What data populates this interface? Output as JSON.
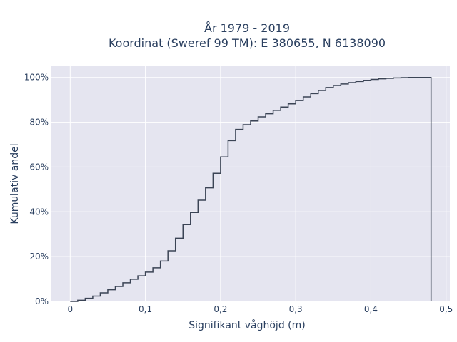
{
  "chart_data": {
    "type": "line",
    "line_shape": "step",
    "title_line1": "År 1979 - 2019",
    "title_line2": "Koordinat (Sweref 99 TM): E 380655, N 6138090",
    "xlabel": "Signifikant våghöjd (m)",
    "ylabel": "Kumulativ andel",
    "xlim": [
      -0.025,
      0.505
    ],
    "ylim": [
      0,
      1.05
    ],
    "x_ticks": [
      0,
      0.1,
      0.2,
      0.3,
      0.4,
      0.5
    ],
    "x_tick_labels": [
      "0",
      "0,1",
      "0,2",
      "0,3",
      "0,4",
      "0,5"
    ],
    "y_ticks": [
      0,
      0.2,
      0.4,
      0.6,
      0.8,
      1.0
    ],
    "y_tick_labels": [
      "0%",
      "20%",
      "40%",
      "60%",
      "80%",
      "100%"
    ],
    "grid": true,
    "colors": {
      "plot_bg": "#e5e5f0",
      "grid": "#ffffff",
      "line": "#3b4455",
      "text": "#2a3f5f"
    },
    "series": [
      {
        "x": [
          0,
          0.01,
          0.02,
          0.03,
          0.04,
          0.05,
          0.06,
          0.07,
          0.08,
          0.09,
          0.1,
          0.11,
          0.12,
          0.13,
          0.14,
          0.15,
          0.16,
          0.17,
          0.18,
          0.19,
          0.2,
          0.21,
          0.22,
          0.23,
          0.24,
          0.25,
          0.26,
          0.27,
          0.28,
          0.29,
          0.3,
          0.31,
          0.32,
          0.33,
          0.34,
          0.35,
          0.36,
          0.37,
          0.38,
          0.39,
          0.4,
          0.41,
          0.42,
          0.43,
          0.44,
          0.45,
          0.46,
          0.47,
          0.48
        ],
        "y": [
          0.0,
          0.005,
          0.014,
          0.024,
          0.038,
          0.052,
          0.067,
          0.083,
          0.099,
          0.114,
          0.131,
          0.15,
          0.18,
          0.226,
          0.282,
          0.343,
          0.397,
          0.452,
          0.507,
          0.572,
          0.645,
          0.718,
          0.768,
          0.789,
          0.806,
          0.824,
          0.838,
          0.853,
          0.868,
          0.882,
          0.897,
          0.913,
          0.928,
          0.942,
          0.955,
          0.964,
          0.971,
          0.977,
          0.982,
          0.987,
          0.991,
          0.994,
          0.996,
          0.998,
          0.999,
          1.0,
          1.0,
          1.0,
          0.0
        ]
      }
    ]
  }
}
